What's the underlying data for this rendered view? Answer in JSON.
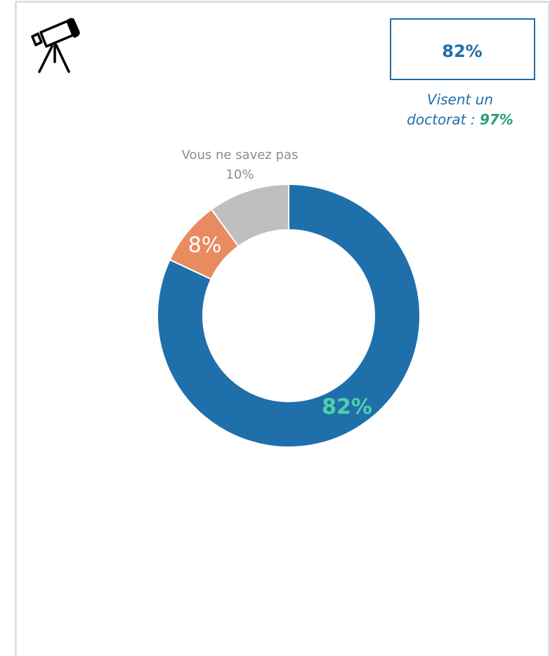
{
  "chart_data": {
    "type": "donut",
    "categories": [
      null,
      null,
      "Vous ne savez pas"
    ],
    "values": [
      82,
      8,
      10
    ],
    "value_labels": [
      "82%",
      "8%",
      "10%"
    ],
    "colors": [
      "#1f6fab",
      "#e98b61",
      "#bfbfbf"
    ],
    "label_colors": [
      "#4fd1a5",
      "#ffffff",
      "#8c8c8c"
    ]
  },
  "kpi_box": {
    "value": "82%",
    "note_lines": [
      "Visent un",
      "doctorat :"
    ],
    "note_highlight": "97%"
  }
}
